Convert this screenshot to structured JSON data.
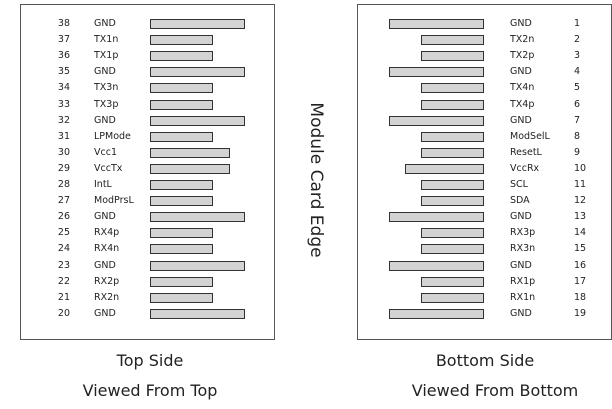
{
  "center_label": "Module Card Edge",
  "top_side": {
    "caption_line1": "Top Side",
    "caption_line2": "Viewed From Top",
    "pins": [
      {
        "num": "38",
        "signal": "GND",
        "pad": "long"
      },
      {
        "num": "37",
        "signal": "TX1n",
        "pad": "short"
      },
      {
        "num": "36",
        "signal": "TX1p",
        "pad": "short"
      },
      {
        "num": "35",
        "signal": "GND",
        "pad": "long"
      },
      {
        "num": "34",
        "signal": "TX3n",
        "pad": "short"
      },
      {
        "num": "33",
        "signal": "TX3p",
        "pad": "short"
      },
      {
        "num": "32",
        "signal": "GND",
        "pad": "long"
      },
      {
        "num": "31",
        "signal": "LPMode",
        "pad": "short"
      },
      {
        "num": "30",
        "signal": "Vcc1",
        "pad": "medium"
      },
      {
        "num": "29",
        "signal": "VccTx",
        "pad": "medium"
      },
      {
        "num": "28",
        "signal": "IntL",
        "pad": "short"
      },
      {
        "num": "27",
        "signal": "ModPrsL",
        "pad": "short"
      },
      {
        "num": "26",
        "signal": "GND",
        "pad": "long"
      },
      {
        "num": "25",
        "signal": "RX4p",
        "pad": "short"
      },
      {
        "num": "24",
        "signal": "RX4n",
        "pad": "short"
      },
      {
        "num": "23",
        "signal": "GND",
        "pad": "long"
      },
      {
        "num": "22",
        "signal": "RX2p",
        "pad": "short"
      },
      {
        "num": "21",
        "signal": "RX2n",
        "pad": "short"
      },
      {
        "num": "20",
        "signal": "GND",
        "pad": "long"
      }
    ]
  },
  "bottom_side": {
    "caption_line1": "Bottom Side",
    "caption_line2": "Viewed From Bottom",
    "pins": [
      {
        "num": "1",
        "signal": "GND",
        "pad": "long"
      },
      {
        "num": "2",
        "signal": "TX2n",
        "pad": "short"
      },
      {
        "num": "3",
        "signal": "TX2p",
        "pad": "short"
      },
      {
        "num": "4",
        "signal": "GND",
        "pad": "long"
      },
      {
        "num": "5",
        "signal": "TX4n",
        "pad": "short"
      },
      {
        "num": "6",
        "signal": "TX4p",
        "pad": "short"
      },
      {
        "num": "7",
        "signal": "GND",
        "pad": "long"
      },
      {
        "num": "8",
        "signal": "ModSelL",
        "pad": "short"
      },
      {
        "num": "9",
        "signal": "ResetL",
        "pad": "short"
      },
      {
        "num": "10",
        "signal": "VccRx",
        "pad": "medium"
      },
      {
        "num": "11",
        "signal": "SCL",
        "pad": "short"
      },
      {
        "num": "12",
        "signal": "SDA",
        "pad": "short"
      },
      {
        "num": "13",
        "signal": "GND",
        "pad": "long"
      },
      {
        "num": "14",
        "signal": "RX3p",
        "pad": "short"
      },
      {
        "num": "15",
        "signal": "RX3n",
        "pad": "short"
      },
      {
        "num": "16",
        "signal": "GND",
        "pad": "long"
      },
      {
        "num": "17",
        "signal": "RX1p",
        "pad": "short"
      },
      {
        "num": "18",
        "signal": "RX1n",
        "pad": "short"
      },
      {
        "num": "19",
        "signal": "GND",
        "pad": "long"
      }
    ]
  }
}
